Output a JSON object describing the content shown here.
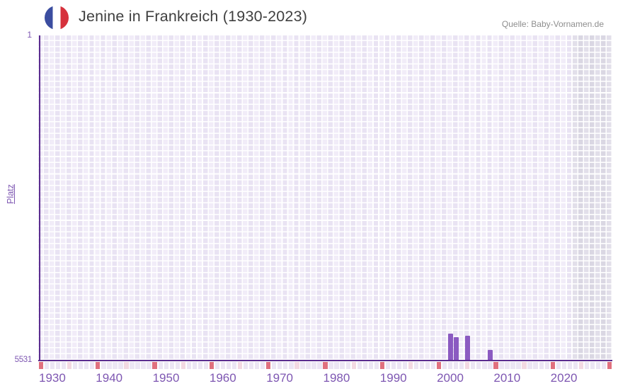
{
  "header": {
    "title": "Jenine in Frankreich (1930-2023)",
    "source": "Quelle: Baby-Vornamen.de",
    "flag_icon": "france-flag-icon"
  },
  "chart_data": {
    "type": "bar",
    "title": "Jenine in Frankreich (1930-2023)",
    "xlabel": "",
    "ylabel": "Platz",
    "y_axis": {
      "min": 1,
      "max": 5531,
      "inverted": true,
      "top_label": "1",
      "bottom_label": "5531"
    },
    "x_axis": {
      "min": 1930,
      "max": 2031,
      "tick_years": [
        1930,
        1940,
        1950,
        1960,
        1970,
        1980,
        1990,
        2000,
        2010,
        2020
      ],
      "data_end_year": 2023,
      "decade_marker_years": [
        1930,
        1940,
        1950,
        1960,
        1970,
        1980,
        1990,
        2000,
        2010,
        2020,
        2030
      ],
      "half_decade_marker_years": [
        1935,
        1945,
        1955,
        1965,
        1975,
        1985,
        1995,
        2005,
        2015,
        2025
      ]
    },
    "series": [
      {
        "name": "Platz",
        "points": [
          {
            "year": 2002,
            "rank": 5085
          },
          {
            "year": 2003,
            "rank": 5145
          },
          {
            "year": 2005,
            "rank": 5115
          },
          {
            "year": 2009,
            "rank": 5360
          }
        ]
      }
    ],
    "grid": true,
    "legend": "none",
    "colors": {
      "bar": "#8b5ac1",
      "axis_line": "#5b2d8f",
      "tick_label": "#7e57b2",
      "grid_cell_light": "#f1ecf8",
      "grid_cell_dark": "#e9e3f3",
      "offrange_cell_light": "#e2dfea",
      "offrange_cell_dark": "#dad7e3",
      "decade_marker": "#e0707e",
      "half_decade_marker": "#f3d9e2",
      "strip_cell": "#ece6f4",
      "title_text": "#3f3f3f",
      "source_text": "#8e8e8e",
      "flag_blue": "#3b4da0",
      "flag_red": "#d6313c"
    }
  }
}
